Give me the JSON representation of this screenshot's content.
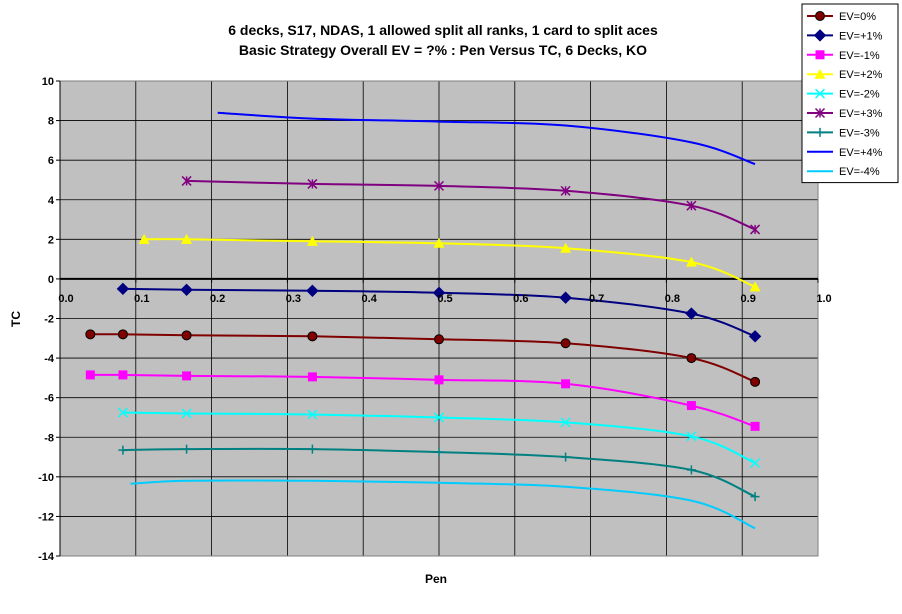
{
  "chart_data": {
    "type": "line",
    "title": "6 decks, S17, NDAS, 1 allowed split all ranks, 1 card to split aces",
    "subtitle": "Basic Strategy Overall EV = ?% : Pen Versus TC, 6 Decks, KO",
    "xlabel": "Pen",
    "ylabel": "TC",
    "xlim": [
      0.0,
      1.0
    ],
    "ylim": [
      -14,
      10
    ],
    "xticks": [
      "0.0",
      "0.1",
      "0.2",
      "0.3",
      "0.4",
      "0.5",
      "0.6",
      "0.7",
      "0.8",
      "0.9",
      "1.0"
    ],
    "yticks": [
      "10",
      "8",
      "6",
      "4",
      "2",
      "0",
      "-2",
      "-4",
      "-6",
      "-8",
      "-10",
      "-12",
      "-14"
    ],
    "grid": true,
    "plot_background": "#c0c0c0",
    "legend_position": "right",
    "series": [
      {
        "name": "EV=0%",
        "color": "#800000",
        "marker": "circle",
        "x": [
          0.04,
          0.083,
          0.167,
          0.333,
          0.5,
          0.667,
          0.833,
          0.917
        ],
        "y": [
          -2.8,
          -2.8,
          -2.85,
          -2.9,
          -3.05,
          -3.25,
          -4.0,
          -5.2
        ]
      },
      {
        "name": "EV=+1%",
        "color": "#000080",
        "marker": "diamond",
        "x": [
          0.083,
          0.167,
          0.333,
          0.5,
          0.667,
          0.833,
          0.917
        ],
        "y": [
          -0.5,
          -0.55,
          -0.6,
          -0.7,
          -0.95,
          -1.75,
          -2.9
        ]
      },
      {
        "name": "EV=-1%",
        "color": "#ff00ff",
        "marker": "square",
        "x": [
          0.04,
          0.083,
          0.167,
          0.333,
          0.5,
          0.667,
          0.833,
          0.917
        ],
        "y": [
          -4.85,
          -4.85,
          -4.9,
          -4.95,
          -5.1,
          -5.3,
          -6.4,
          -7.45
        ]
      },
      {
        "name": "EV=+2%",
        "color": "#ffff00",
        "marker": "triangle",
        "x": [
          0.111,
          0.167,
          0.333,
          0.5,
          0.667,
          0.833,
          0.917
        ],
        "y": [
          2.0,
          2.0,
          1.9,
          1.8,
          1.55,
          0.85,
          -0.4
        ]
      },
      {
        "name": "EV=-2%",
        "color": "#00ffff",
        "marker": "x",
        "x": [
          0.083,
          0.167,
          0.333,
          0.5,
          0.667,
          0.833,
          0.917
        ],
        "y": [
          -6.75,
          -6.8,
          -6.85,
          -7.0,
          -7.25,
          -7.95,
          -9.3
        ]
      },
      {
        "name": "EV=+3%",
        "color": "#800080",
        "marker": "star",
        "x": [
          0.167,
          0.333,
          0.5,
          0.667,
          0.833,
          0.917
        ],
        "y": [
          4.95,
          4.8,
          4.7,
          4.45,
          3.7,
          2.5
        ]
      },
      {
        "name": "EV=-3%",
        "color": "#008080",
        "marker": "plus",
        "x": [
          0.083,
          0.167,
          0.333,
          0.5,
          0.667,
          0.833,
          0.917
        ],
        "y": [
          -8.65,
          -8.6,
          -8.6,
          -8.75,
          -9.0,
          -9.65,
          -11.0
        ]
      },
      {
        "name": "EV=+4%",
        "color": "#0000ff",
        "marker": "none",
        "x": [
          0.208,
          0.333,
          0.5,
          0.667,
          0.833,
          0.917
        ],
        "y": [
          8.4,
          8.1,
          7.95,
          7.75,
          6.9,
          5.8
        ]
      },
      {
        "name": "EV=-4%",
        "color": "#00ccff",
        "marker": "none",
        "x": [
          0.093,
          0.167,
          0.333,
          0.5,
          0.667,
          0.833,
          0.917
        ],
        "y": [
          -10.35,
          -10.2,
          -10.2,
          -10.3,
          -10.5,
          -11.2,
          -12.6
        ]
      }
    ]
  }
}
